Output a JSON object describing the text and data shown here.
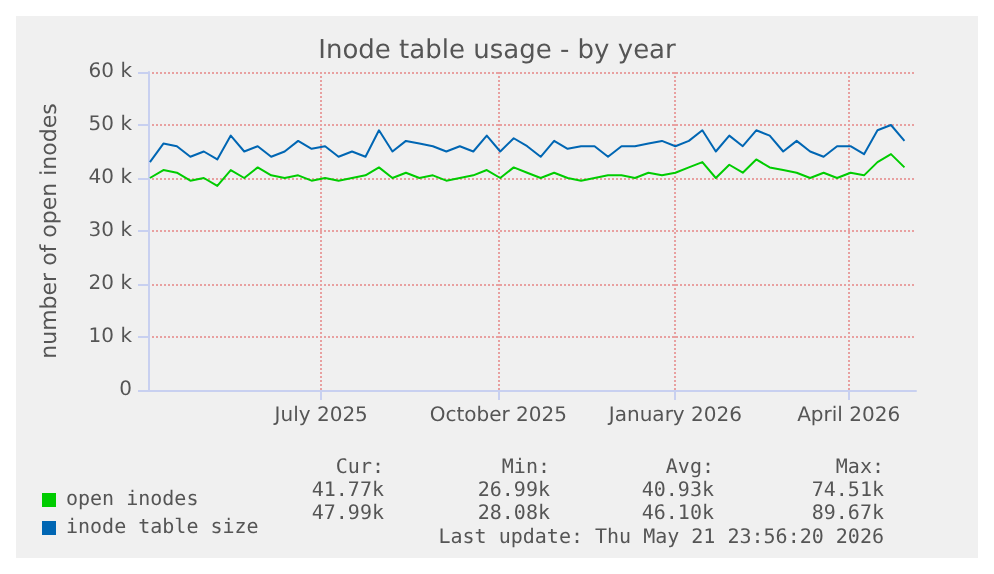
{
  "chart_data": {
    "type": "line",
    "title": "Inode table usage - by year",
    "ylabel": "number of open inodes",
    "x": [
      "2025-04-03",
      "2025-04-10",
      "2025-04-17",
      "2025-04-24",
      "2025-05-01",
      "2025-05-08",
      "2025-05-15",
      "2025-05-22",
      "2025-05-29",
      "2025-06-05",
      "2025-06-12",
      "2025-06-19",
      "2025-06-26",
      "2025-07-03",
      "2025-07-10",
      "2025-07-17",
      "2025-07-24",
      "2025-07-31",
      "2025-08-07",
      "2025-08-14",
      "2025-08-21",
      "2025-08-28",
      "2025-09-04",
      "2025-09-11",
      "2025-09-18",
      "2025-09-25",
      "2025-10-02",
      "2025-10-09",
      "2025-10-16",
      "2025-10-23",
      "2025-10-30",
      "2025-11-06",
      "2025-11-13",
      "2025-11-20",
      "2025-11-27",
      "2025-12-04",
      "2025-12-11",
      "2025-12-18",
      "2025-12-25",
      "2026-01-01",
      "2026-01-08",
      "2026-01-15",
      "2026-01-22",
      "2026-01-29",
      "2026-02-05",
      "2026-02-12",
      "2026-02-19",
      "2026-02-26",
      "2026-03-05",
      "2026-03-12",
      "2026-03-19",
      "2026-03-26",
      "2026-04-02",
      "2026-04-09",
      "2026-04-16",
      "2026-04-23",
      "2026-04-30"
    ],
    "series": [
      {
        "name": "open inodes",
        "color": "#00cc00",
        "values": [
          40000,
          41500,
          41000,
          39500,
          40000,
          38500,
          41500,
          40000,
          42000,
          40500,
          40000,
          40500,
          39500,
          40000,
          39500,
          40000,
          40500,
          42000,
          40000,
          41000,
          40000,
          40500,
          39500,
          40000,
          40500,
          41500,
          40000,
          42000,
          41000,
          40000,
          41000,
          40000,
          39500,
          40000,
          40500,
          40500,
          40000,
          41000,
          40500,
          41000,
          42000,
          43000,
          40000,
          42500,
          41000,
          43500,
          42000,
          41500,
          41000,
          40000,
          41000,
          40000,
          41000,
          40500,
          43000,
          44500,
          42000
        ]
      },
      {
        "name": "inode table size",
        "color": "#0066b3",
        "values": [
          43000,
          46500,
          46000,
          44000,
          45000,
          43500,
          48000,
          45000,
          46000,
          44000,
          45000,
          47000,
          45500,
          46000,
          44000,
          45000,
          44000,
          49000,
          45000,
          47000,
          46500,
          46000,
          45000,
          46000,
          45000,
          48000,
          45000,
          47500,
          46000,
          44000,
          47000,
          45500,
          46000,
          46000,
          44000,
          46000,
          46000,
          46500,
          47000,
          46000,
          47000,
          49000,
          45000,
          48000,
          46000,
          49000,
          48000,
          45000,
          47000,
          45000,
          44000,
          46000,
          46000,
          44500,
          49000,
          50000,
          47000
        ]
      }
    ],
    "xlim": [
      "2025-04-02",
      "2026-05-06"
    ],
    "xticks": [
      {
        "value": "2025-07-01",
        "label": "July 2025"
      },
      {
        "value": "2025-10-01",
        "label": "October 2025"
      },
      {
        "value": "2026-01-01",
        "label": "January 2026"
      },
      {
        "value": "2026-04-01",
        "label": "April 2026"
      }
    ],
    "ylim": [
      0,
      60000
    ],
    "yticks": [
      0,
      {
        "value": 10000,
        "label": "10 k"
      },
      {
        "value": 20000,
        "label": "20 k"
      },
      {
        "value": 30000,
        "label": "30 k"
      },
      {
        "value": 40000,
        "label": "40 k"
      },
      {
        "value": 50000,
        "label": "50 k"
      },
      {
        "value": 60000,
        "label": "60 k"
      }
    ],
    "grid": true,
    "legend": "bottom left",
    "marker": "none",
    "line_style": "solid",
    "annotations": [
      "Cur:",
      "Min:",
      "Avg:",
      "Max:",
      "41.77k",
      "26.99k",
      "40.93k",
      "74.51k",
      "47.99k",
      "28.08k",
      "46.10k",
      "89.67k",
      "Last update: Thu May 21 23:56:20 2026"
    ]
  }
}
